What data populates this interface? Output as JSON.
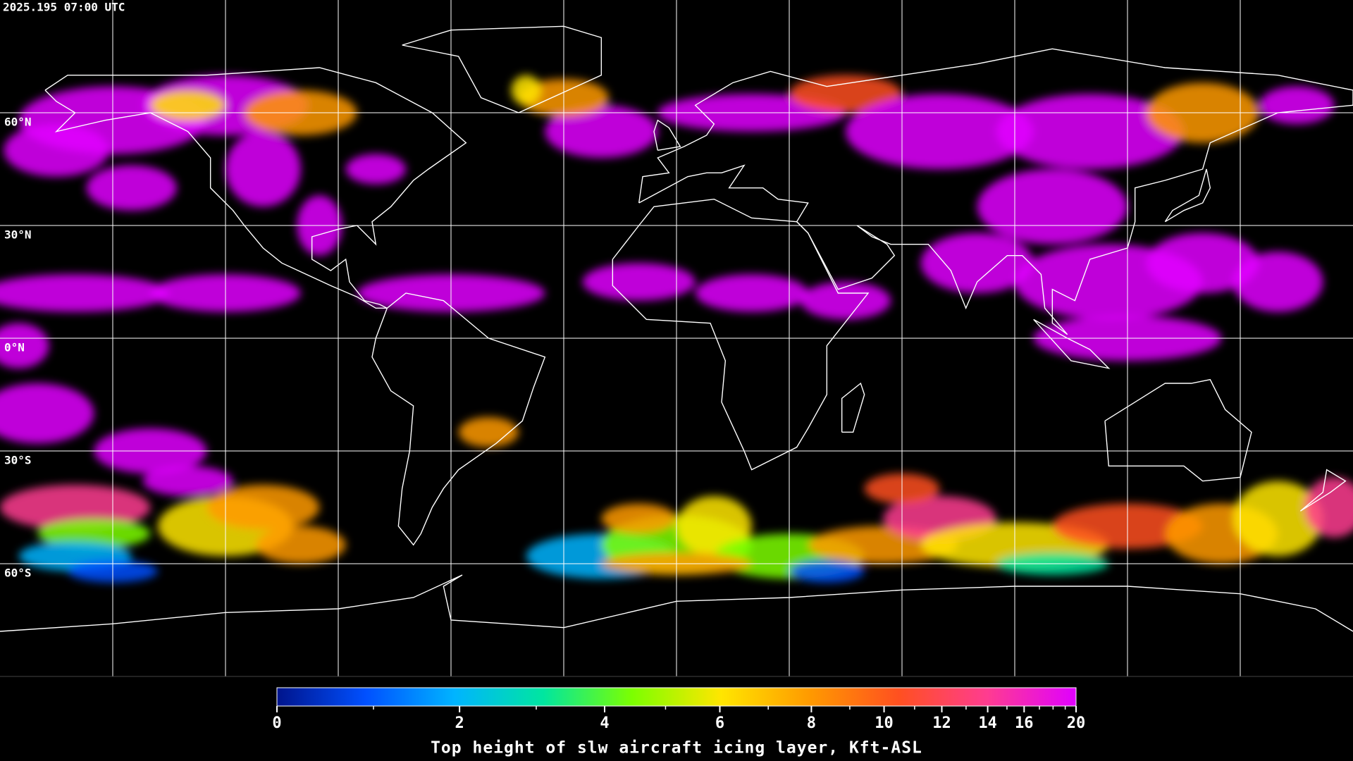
{
  "timestamp": "2025.195 07:00 UTC",
  "map": {
    "parallels": [
      {
        "value": 60,
        "label": "60°N"
      },
      {
        "value": 30,
        "label": "30°N"
      },
      {
        "value": 0,
        "label": "0°N"
      },
      {
        "value": -30,
        "label": "30°S"
      },
      {
        "value": -60,
        "label": "60°S"
      }
    ],
    "coastline_color": "#ffffff",
    "grid_color": "#ffffff"
  },
  "colorbar": {
    "title": "Top height of slw aircraft icing layer, Kft-ASL",
    "lim": [
      0,
      20
    ],
    "ticks": [
      0,
      2,
      4,
      6,
      8,
      10,
      12,
      14,
      16,
      20
    ],
    "colors": [
      "#00148c",
      "#0050ff",
      "#00b4ff",
      "#00e6a0",
      "#7cff00",
      "#ffe600",
      "#ff9a00",
      "#ff5020",
      "#ff3c90",
      "#e000ff"
    ]
  }
}
